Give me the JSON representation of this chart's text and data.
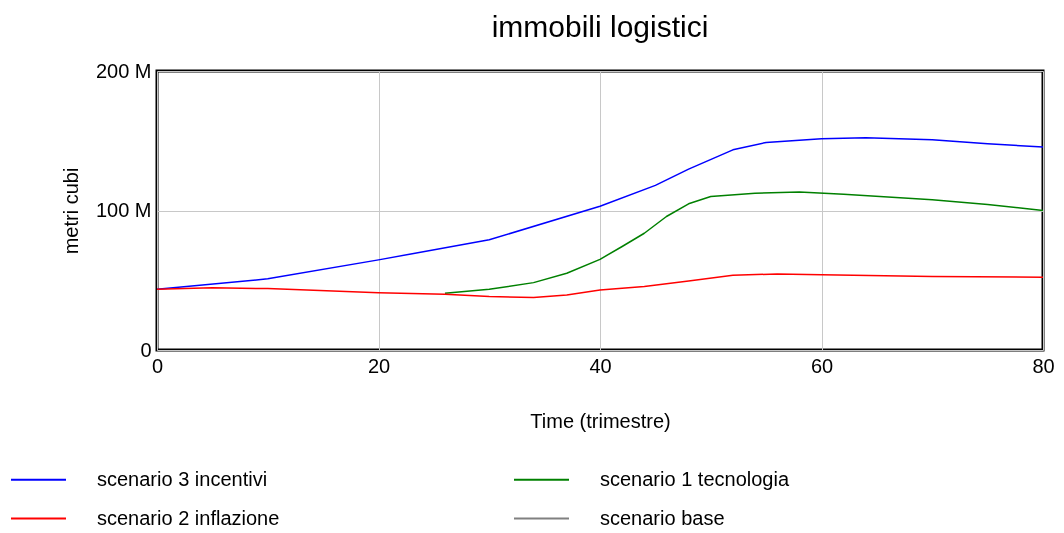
{
  "chart_data": {
    "type": "line",
    "title": "immobili logistici",
    "xlabel": "Time (trimestre)",
    "ylabel": "metri cubi",
    "xlim": [
      0,
      80
    ],
    "xticks": [
      0,
      20,
      40,
      60,
      80
    ],
    "ylim": [
      0,
      200
    ],
    "yticks": [
      {
        "value": 0,
        "label": "0"
      },
      {
        "value": 100,
        "label": "100 M"
      },
      {
        "value": 200,
        "label": "200 M"
      }
    ],
    "grid": true,
    "legend": "bottom",
    "marker": "none",
    "line_style": "solid",
    "series": [
      {
        "name": "scenario 3 incentivi",
        "color": "#0000ff",
        "x": [
          0,
          10,
          20,
          30,
          40,
          45,
          48,
          52,
          55,
          60,
          64,
          70,
          75,
          80
        ],
        "values": [
          43.5,
          51,
          64.6,
          79,
          103,
          118,
          129.7,
          143.5,
          148.8,
          151.4,
          152.2,
          150.7,
          147.8,
          145.5
        ]
      },
      {
        "name": "scenario 1 tecnologia",
        "color": "#008000",
        "x": [
          26,
          30,
          34,
          37,
          40,
          42,
          44,
          46,
          48,
          50,
          54,
          58,
          62,
          70,
          75,
          80
        ],
        "values": [
          40.7,
          43.5,
          48.3,
          55,
          65,
          74.2,
          83.7,
          95.7,
          104.8,
          110,
          112.4,
          113.2,
          111.7,
          107.7,
          104.3,
          100
        ]
      },
      {
        "name": "scenario 2 inflazione",
        "color": "#ff0000",
        "x": [
          0,
          5,
          10,
          20,
          26,
          30,
          34,
          37,
          40,
          44,
          48,
          52,
          56,
          60,
          70,
          80
        ],
        "values": [
          43.5,
          44.7,
          44,
          41.1,
          40,
          38.3,
          37.6,
          39.5,
          43,
          45.5,
          49.5,
          53.6,
          54.5,
          54,
          52.6,
          52.2
        ]
      },
      {
        "name": "scenario base",
        "color": "#808080",
        "values": [
          null
        ]
      }
    ]
  }
}
